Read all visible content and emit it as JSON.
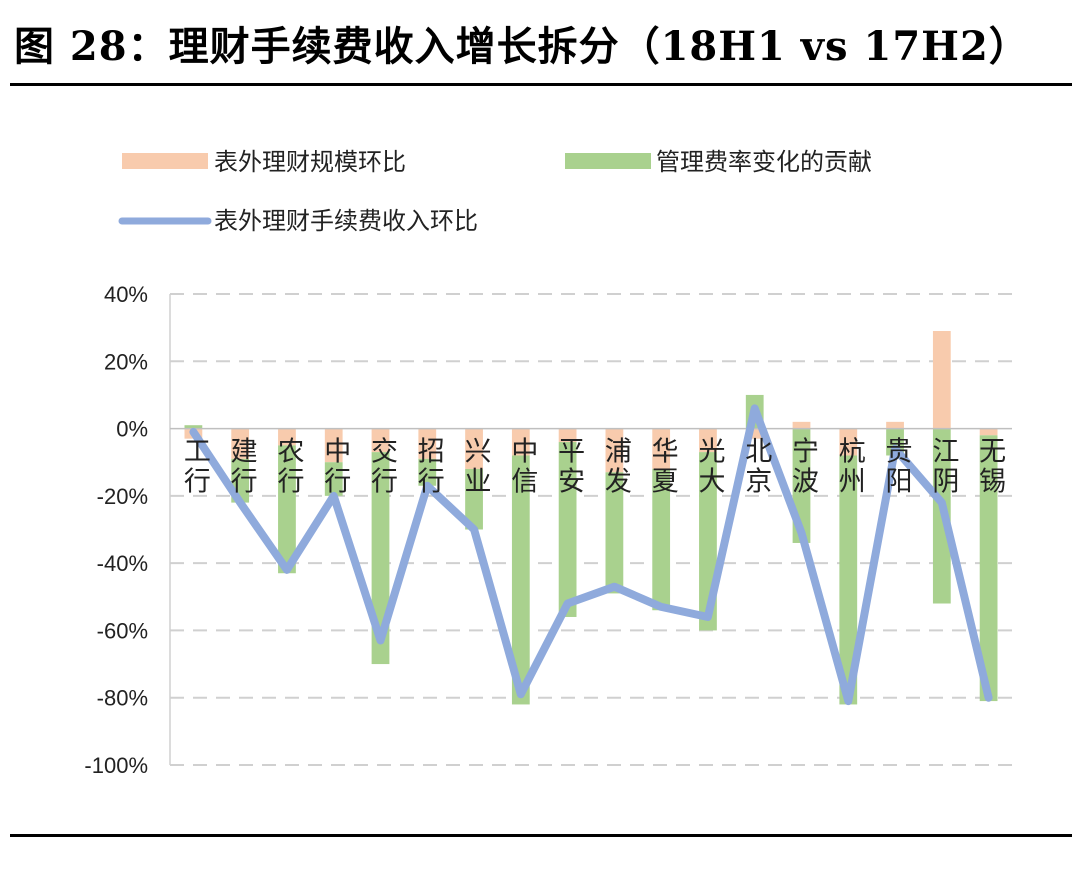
{
  "figure": {
    "title": "图 28：理财手续费收入增长拆分（18H1 vs 17H2）"
  },
  "colors": {
    "scale_bar": "#F8CBAD",
    "fee_bar": "#A9D18E",
    "line": "#8FAADC",
    "grid": "#D0D0D0"
  },
  "chart_data": {
    "type": "bar",
    "categories": [
      "工行",
      "建行",
      "农行",
      "中行",
      "交行",
      "招行",
      "兴业",
      "中信",
      "平安",
      "浦发",
      "华夏",
      "光大",
      "北京",
      "宁波",
      "杭州",
      "贵阳",
      "江阴",
      "无锡"
    ],
    "series": [
      {
        "name": "表外理财规模环比",
        "type": "bar",
        "values": [
          -3,
          -9,
          -5,
          -10,
          -7,
          -9,
          -12,
          -8,
          -4,
          -13,
          -12,
          -7,
          -3,
          2,
          -8,
          2,
          29,
          -2
        ]
      },
      {
        "name": "管理费率变化的贡献",
        "type": "bar",
        "values": [
          1,
          -13,
          -38,
          -10,
          -63,
          -8,
          -18,
          -74,
          -52,
          -36,
          -42,
          -53,
          10,
          -34,
          -74,
          -8,
          -52,
          -79
        ]
      },
      {
        "name": "表外理财手续费收入环比",
        "type": "line",
        "values": [
          -1,
          -22,
          -42,
          -20,
          -63,
          -17,
          -30,
          -79,
          -52,
          -47,
          -53,
          -56,
          6,
          -31,
          -81,
          -6,
          -22,
          -80
        ]
      }
    ],
    "ylim": [
      -100,
      40
    ],
    "yticks": [
      -100,
      -80,
      -60,
      -40,
      -20,
      0,
      20,
      40
    ],
    "ytick_labels": [
      "-100%",
      "-80%",
      "-60%",
      "-40%",
      "-20%",
      "0%",
      "20%",
      "40%"
    ],
    "grid": true,
    "legend_position": "top"
  }
}
